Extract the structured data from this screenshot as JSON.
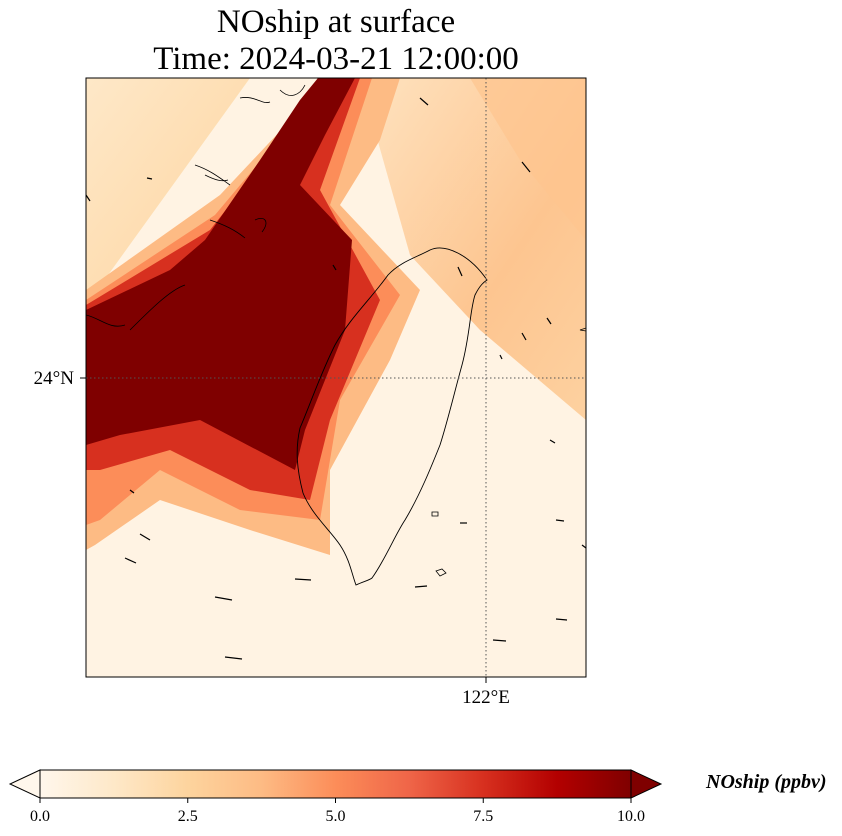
{
  "title_line_1": "NOship at surface",
  "title_line_2": "Time: 2024-03-21 12:00:00",
  "map": {
    "variable": "NOship",
    "level": "surface",
    "time": "2024-03-21 12:00:00",
    "lat_tick": 24,
    "lat_tick_label": "24°N",
    "lon_tick": 122,
    "lon_tick_label": "122°E",
    "gridlines": "dotted",
    "features": [
      "coastline",
      "wind-vectors",
      "shaded-field"
    ]
  },
  "colorbar": {
    "label": "NOship (ppbv)",
    "min": 0.0,
    "max": 10.0,
    "extend": "both",
    "orientation": "horizontal",
    "colormap": "OrRd",
    "colors": [
      "#fff7ec",
      "#fee8c8",
      "#fdd49e",
      "#fdbb84",
      "#fc8d59",
      "#ef6548",
      "#d7301f",
      "#b30000",
      "#7f0000"
    ],
    "ticks": [
      0.0,
      2.5,
      5.0,
      7.5,
      10.0
    ],
    "tick_labels": [
      "0.0",
      "2.5",
      "5.0",
      "7.5",
      "10.0"
    ]
  }
}
